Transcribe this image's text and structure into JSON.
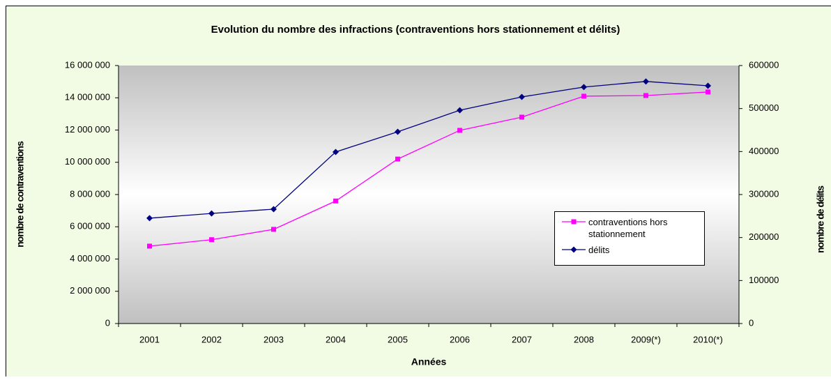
{
  "chart_data": {
    "type": "line",
    "title": "Evolution du nombre des infractions (contraventions hors stationnement et délits)",
    "x_label": "Années",
    "y_label": "nombre de contraventions",
    "y2_label": "nombre de délits",
    "categories": [
      "2001",
      "2002",
      "2003",
      "2004",
      "2005",
      "2006",
      "2007",
      "2008",
      "2009(*)",
      "2010(*)"
    ],
    "series": [
      {
        "name": "contraventions hors stationnement",
        "color": "#ff00ff",
        "marker": "square",
        "values": [
          4800000,
          5200000,
          5840000,
          7600000,
          10200000,
          11980000,
          12800000,
          14100000,
          14140000,
          14360000
        ]
      },
      {
        "name": "délits",
        "color": "#000080",
        "marker": "diamond",
        "axis": "y2",
        "values": [
          245000,
          256000,
          266000,
          399000,
          446000,
          496000,
          527000,
          550000,
          563000,
          553000
        ]
      }
    ],
    "ylim": [
      0,
      16000000
    ],
    "yticks": [
      0,
      {
        "value": 2000000,
        "label": "2 000 000"
      },
      {
        "value": 4000000,
        "label": "4 000 000"
      },
      {
        "value": 6000000,
        "label": "6 000 000"
      },
      {
        "value": 8000000,
        "label": "8 000 000"
      },
      {
        "value": 10000000,
        "label": "10 000 000"
      },
      {
        "value": 12000000,
        "label": "12 000 000"
      },
      {
        "value": 14000000,
        "label": "14 000 000"
      },
      {
        "value": 16000000,
        "label": "16 000 000"
      }
    ],
    "y2lim": [
      0,
      600000
    ],
    "y2ticks": [
      0,
      100000,
      200000,
      300000,
      400000,
      500000,
      600000
    ],
    "legend": "right"
  }
}
